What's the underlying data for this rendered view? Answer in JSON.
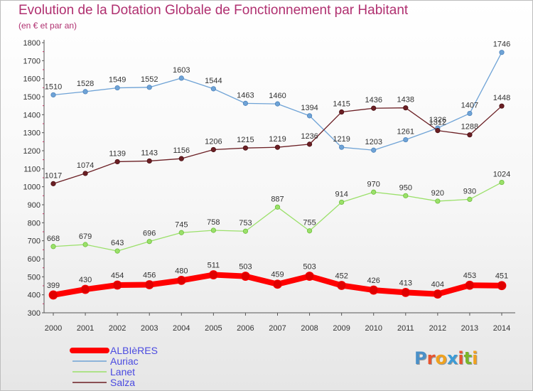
{
  "header": {
    "title": "Evolution de la Dotation Globale de Fonctionnement par Habitant",
    "subtitle": "(en € et par an)"
  },
  "logo": {
    "letters": [
      "P",
      "r",
      "o",
      "x",
      "i",
      "t",
      "i"
    ],
    "colors": [
      "#4a90c8",
      "#e8532f",
      "#f0a21f",
      "#3c9bd6",
      "#e8532f",
      "#7ab52b",
      "#f0a21f"
    ]
  },
  "chart_data": {
    "type": "line",
    "title": "Evolution de la Dotation Globale de Fonctionnement par Habitant",
    "subtitle": "(en € et par an)",
    "xlabel": "",
    "ylabel": "",
    "x": [
      "2000",
      "2001",
      "2002",
      "2003",
      "2004",
      "2005",
      "2006",
      "2007",
      "2008",
      "2009",
      "2010",
      "2011",
      "2012",
      "2013",
      "2014"
    ],
    "ylim": [
      300,
      1800
    ],
    "yticks": [
      300,
      400,
      500,
      600,
      700,
      800,
      900,
      1000,
      1100,
      1200,
      1300,
      1400,
      1500,
      1600,
      1700,
      1800
    ],
    "grid": false,
    "legend_position": "bottom-left",
    "series": [
      {
        "name": "Auriac",
        "color": "#6fa3d6",
        "values": [
          1510,
          1528,
          1549,
          1552,
          1603,
          1544,
          1463,
          1460,
          1394,
          1219,
          1203,
          1261,
          1326,
          1407,
          1746
        ]
      },
      {
        "name": "Salza",
        "color": "#6b1f24",
        "values": [
          1017,
          1074,
          1139,
          1143,
          1156,
          1206,
          1215,
          1219,
          1236,
          1415,
          1436,
          1438,
          1312,
          1288,
          1448
        ]
      },
      {
        "name": "Lanet",
        "color": "#9be06a",
        "values": [
          668,
          679,
          643,
          696,
          745,
          758,
          753,
          887,
          755,
          914,
          970,
          950,
          920,
          930,
          1024
        ]
      },
      {
        "name": "ALBIèRES",
        "color": "#ff0000",
        "values": [
          399,
          430,
          454,
          456,
          480,
          511,
          503,
          459,
          503,
          452,
          426,
          413,
          404,
          453,
          451
        ]
      }
    ],
    "legend_order": [
      "ALBIèRES",
      "Auriac",
      "Lanet",
      "Salza"
    ]
  }
}
